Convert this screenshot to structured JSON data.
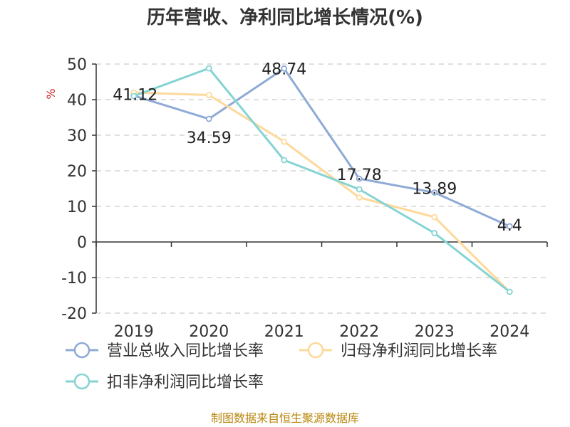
{
  "title": "历年营收、净利同比增长情况(%)",
  "source": "制图数据来自恒生聚源数据库",
  "colors": {
    "revenue": "#8eaad6",
    "net_profit": "#fdd99b",
    "deducted_profit": "#85d3d3",
    "grid": "#cccccc",
    "axis": "#333333"
  },
  "chart_data": {
    "type": "line",
    "title": "历年营收、净利同比增长情况(%)",
    "ylabel": "%",
    "xlabel": "",
    "x": [
      "2019",
      "2020",
      "2021",
      "2022",
      "2023",
      "2024"
    ],
    "ylim": [
      -20,
      50
    ],
    "yticks": [
      50,
      40,
      30,
      20,
      10,
      0,
      -10,
      -20
    ],
    "grid": true,
    "legend_position": "bottom",
    "series": [
      {
        "name": "营业总收入同比增长率",
        "key": "revenue",
        "values": [
          41.12,
          34.59,
          48.74,
          17.78,
          13.89,
          4.4
        ],
        "labels": [
          "41.12",
          "34.59",
          "48.74",
          "17.78",
          "13.89",
          "4.4"
        ]
      },
      {
        "name": "归母净利润同比增长率",
        "key": "net_profit",
        "values": [
          42.0,
          41.3,
          28.2,
          12.5,
          7.0,
          -14.0
        ]
      },
      {
        "name": "扣非净利润同比增长率",
        "key": "deducted_profit",
        "values": [
          41.0,
          48.8,
          23.0,
          14.8,
          2.5,
          -14.0
        ]
      }
    ]
  }
}
